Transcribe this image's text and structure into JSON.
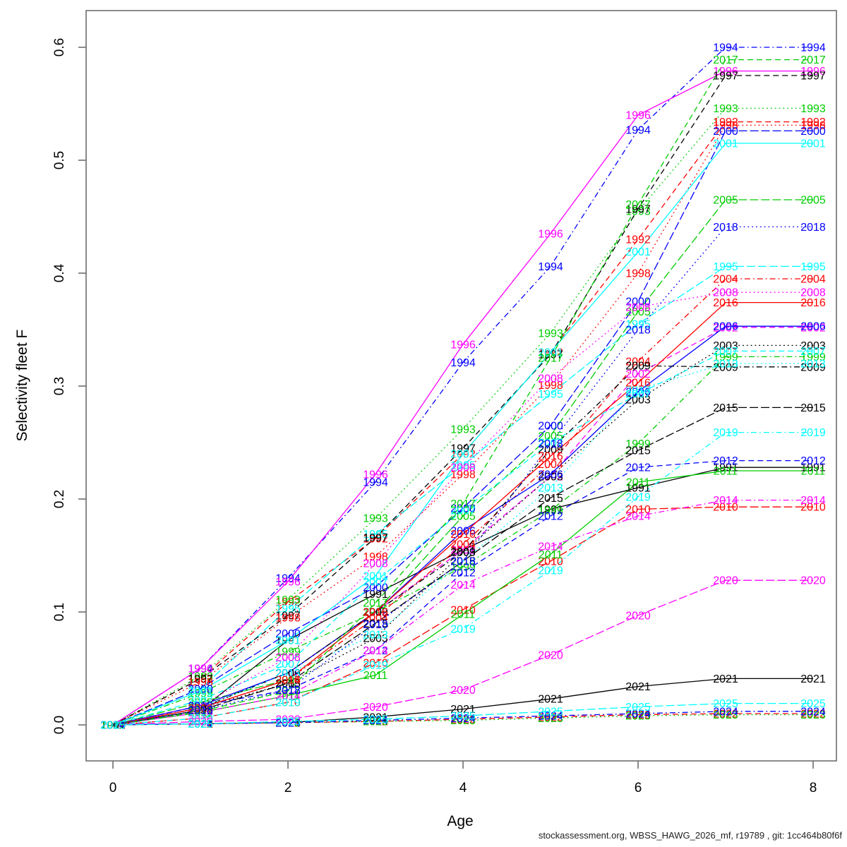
{
  "figure": {
    "footer": "stockassessment.org, WBSS_HAWG_2026_mf, r19789 , git: 1cc464b80f6f"
  },
  "chart_data": {
    "type": "line",
    "title": "",
    "xlabel": "Age",
    "ylabel": "Selectivity fleet F",
    "x": [
      0,
      1,
      2,
      3,
      4,
      5,
      6,
      7,
      8
    ],
    "xlim": [
      0,
      8
    ],
    "ylim": [
      0.0,
      0.6
    ],
    "xticks": [
      "0",
      "2",
      "4",
      "6",
      "8"
    ],
    "xtick_values": [
      0,
      2,
      4,
      6,
      8
    ],
    "yticks": [
      "0.0",
      "0.1",
      "0.2",
      "0.3",
      "0.4",
      "0.5",
      "0.6"
    ],
    "ytick_values": [
      0.0,
      0.1,
      0.2,
      0.3,
      0.4,
      0.5,
      0.6
    ],
    "grid": false,
    "legend_position": "none",
    "point_labels": "each line is labelled with its year at every age vertex",
    "palette_cycle": [
      "#000000",
      "#FF0000",
      "#00CD00",
      "#0000FF",
      "#00FFFF",
      "#FF00FF"
    ],
    "linetype_cycle": [
      "solid",
      "dashed",
      "dotted",
      "dotdash",
      "longdash"
    ],
    "series": [
      {
        "name": "1991",
        "color": "#000000",
        "linetype": "solid",
        "values": [
          0,
          0.013,
          0.075,
          0.116,
          0.155,
          0.191,
          0.21,
          0.228,
          0.228
        ]
      },
      {
        "name": "1992",
        "color": "#FF0000",
        "linetype": "dashed",
        "values": [
          0,
          0.041,
          0.109,
          0.165,
          0.24,
          0.33,
          0.43,
          0.534,
          0.534
        ]
      },
      {
        "name": "1993",
        "color": "#00CD00",
        "linetype": "dotted",
        "values": [
          0,
          0.043,
          0.111,
          0.183,
          0.262,
          0.347,
          0.455,
          0.546,
          0.546
        ]
      },
      {
        "name": "1994",
        "color": "#0000FF",
        "linetype": "dotdash",
        "values": [
          0,
          0.05,
          0.13,
          0.215,
          0.321,
          0.406,
          0.527,
          0.6,
          0.6
        ]
      },
      {
        "name": "1995",
        "color": "#00FFFF",
        "linetype": "longdash",
        "values": [
          0,
          0.032,
          0.103,
          0.169,
          0.23,
          0.293,
          0.355,
          0.406,
          0.406
        ]
      },
      {
        "name": "1996",
        "color": "#FF00FF",
        "linetype": "solid",
        "values": [
          0,
          0.05,
          0.127,
          0.222,
          0.337,
          0.435,
          0.54,
          0.579,
          0.579
        ]
      },
      {
        "name": "1997",
        "color": "#000000",
        "linetype": "dashed",
        "values": [
          0,
          0.041,
          0.097,
          0.166,
          0.245,
          0.328,
          0.457,
          0.575,
          0.575
        ]
      },
      {
        "name": "1998",
        "color": "#FF0000",
        "linetype": "dotted",
        "values": [
          0,
          0.038,
          0.095,
          0.149,
          0.222,
          0.301,
          0.4,
          0.531,
          0.531
        ]
      },
      {
        "name": "1999",
        "color": "#00CD00",
        "linetype": "dotdash",
        "values": [
          0,
          0.028,
          0.065,
          0.1,
          0.14,
          0.19,
          0.249,
          0.326,
          0.326
        ]
      },
      {
        "name": "2000",
        "color": "#0000FF",
        "linetype": "longdash",
        "values": [
          0,
          0.032,
          0.081,
          0.122,
          0.192,
          0.265,
          0.375,
          0.526,
          0.526
        ]
      },
      {
        "name": "2001",
        "color": "#00FFFF",
        "linetype": "solid",
        "values": [
          0,
          0.03,
          0.075,
          0.132,
          0.24,
          0.33,
          0.419,
          0.515,
          0.515
        ]
      },
      {
        "name": "2002",
        "color": "#FF00FF",
        "linetype": "dashed",
        "values": [
          0,
          0.017,
          0.046,
          0.1,
          0.155,
          0.22,
          0.311,
          0.352,
          0.352
        ]
      },
      {
        "name": "2003",
        "color": "#000000",
        "linetype": "dotted",
        "values": [
          0,
          0.015,
          0.037,
          0.077,
          0.153,
          0.22,
          0.288,
          0.336,
          0.336
        ]
      },
      {
        "name": "2004",
        "color": "#FF0000",
        "linetype": "dotdash",
        "values": [
          0,
          0.015,
          0.04,
          0.095,
          0.16,
          0.231,
          0.322,
          0.395,
          0.395
        ]
      },
      {
        "name": "2005",
        "color": "#00CD00",
        "linetype": "longdash",
        "values": [
          0,
          0.02,
          0.04,
          0.1,
          0.185,
          0.256,
          0.366,
          0.465,
          0.465
        ]
      },
      {
        "name": "2006",
        "color": "#0000FF",
        "linetype": "solid",
        "values": [
          0,
          0.017,
          0.046,
          0.1,
          0.172,
          0.222,
          0.295,
          0.353,
          0.353
        ]
      },
      {
        "name": "2007",
        "color": "#00FFFF",
        "linetype": "dashed",
        "values": [
          0,
          0.022,
          0.054,
          0.127,
          0.19,
          0.25,
          0.293,
          0.331,
          0.331
        ]
      },
      {
        "name": "2008",
        "color": "#FF00FF",
        "linetype": "dotted",
        "values": [
          0,
          0.017,
          0.06,
          0.143,
          0.228,
          0.307,
          0.37,
          0.383,
          0.383
        ]
      },
      {
        "name": "2009",
        "color": "#000000",
        "linetype": "dotdash",
        "values": [
          0,
          0.015,
          0.046,
          0.1,
          0.153,
          0.244,
          0.318,
          0.317,
          0.317
        ]
      },
      {
        "name": "2010",
        "color": "#FF0000",
        "linetype": "longdash",
        "values": [
          0,
          0.006,
          0.02,
          0.055,
          0.102,
          0.145,
          0.191,
          0.193,
          0.193
        ]
      },
      {
        "name": "2011",
        "color": "#00CD00",
        "linetype": "solid",
        "values": [
          0,
          0.011,
          0.026,
          0.044,
          0.098,
          0.151,
          0.215,
          0.225,
          0.225
        ]
      },
      {
        "name": "2012",
        "color": "#0000FF",
        "linetype": "dashed",
        "values": [
          0,
          0.017,
          0.031,
          0.066,
          0.135,
          0.185,
          0.228,
          0.234,
          0.234
        ]
      },
      {
        "name": "2013",
        "color": "#00FFFF",
        "linetype": "dotted",
        "values": [
          0,
          0.015,
          0.046,
          0.08,
          0.145,
          0.21,
          0.297,
          0.32,
          0.32
        ]
      },
      {
        "name": "2014",
        "color": "#FF00FF",
        "linetype": "dotdash",
        "values": [
          0,
          0.011,
          0.026,
          0.066,
          0.124,
          0.158,
          0.185,
          0.199,
          0.199
        ]
      },
      {
        "name": "2015",
        "color": "#000000",
        "linetype": "longdash",
        "values": [
          0,
          0.013,
          0.037,
          0.09,
          0.145,
          0.201,
          0.243,
          0.281,
          0.281
        ]
      },
      {
        "name": "2016",
        "color": "#FF0000",
        "linetype": "solid",
        "values": [
          0,
          0.015,
          0.04,
          0.1,
          0.169,
          0.238,
          0.303,
          0.374,
          0.374
        ]
      },
      {
        "name": "2017",
        "color": "#00CD00",
        "linetype": "dashed",
        "values": [
          0,
          0.012,
          0.03,
          0.108,
          0.196,
          0.325,
          0.461,
          0.589,
          0.589
        ]
      },
      {
        "name": "2018",
        "color": "#0000FF",
        "linetype": "dotted",
        "values": [
          0,
          0.013,
          0.031,
          0.089,
          0.145,
          0.249,
          0.35,
          0.441,
          0.441
        ]
      },
      {
        "name": "2019",
        "color": "#00FFFF",
        "linetype": "dotdash",
        "values": [
          0,
          0.006,
          0.02,
          0.053,
          0.085,
          0.137,
          0.202,
          0.259,
          0.259
        ]
      },
      {
        "name": "2020",
        "color": "#FF00FF",
        "linetype": "longdash",
        "values": [
          0,
          0.003,
          0.005,
          0.016,
          0.031,
          0.062,
          0.097,
          0.128,
          0.128
        ]
      },
      {
        "name": "2021",
        "color": "#000000",
        "linetype": "solid",
        "values": [
          0,
          0.001,
          0.002,
          0.007,
          0.014,
          0.023,
          0.034,
          0.041,
          0.041
        ]
      },
      {
        "name": "2022",
        "color": "#FF0000",
        "linetype": "dashed",
        "values": [
          0,
          0.001,
          0.002,
          0.003,
          0.005,
          0.007,
          0.009,
          0.01,
          0.01
        ]
      },
      {
        "name": "2023",
        "color": "#00CD00",
        "linetype": "dotted",
        "values": [
          0,
          0.001,
          0.002,
          0.003,
          0.004,
          0.006,
          0.008,
          0.009,
          0.009
        ]
      },
      {
        "name": "2024",
        "color": "#0000FF",
        "linetype": "dotdash",
        "values": [
          0,
          0.001,
          0.002,
          0.004,
          0.006,
          0.008,
          0.01,
          0.012,
          0.012
        ]
      },
      {
        "name": "2025",
        "color": "#00FFFF",
        "linetype": "longdash",
        "values": [
          0,
          0.001,
          0.003,
          0.005,
          0.008,
          0.012,
          0.016,
          0.019,
          0.019
        ]
      }
    ]
  }
}
